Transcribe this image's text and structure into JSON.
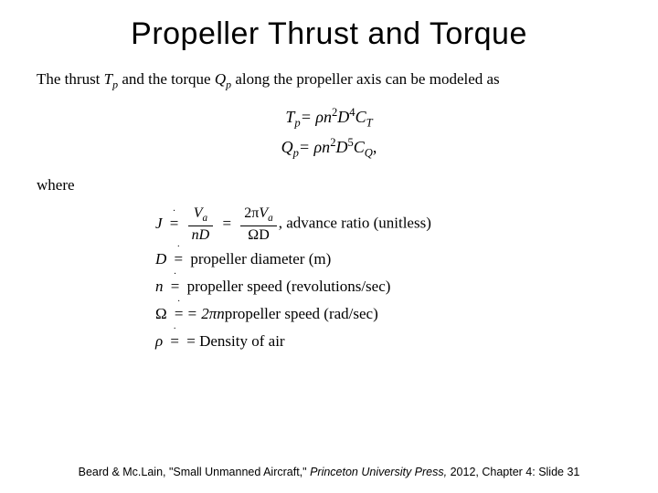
{
  "title": "Propeller Thrust and Torque",
  "intro_pre": "The thrust ",
  "intro_Tp": "T",
  "intro_Tp_sub": "p",
  "intro_mid1": " and the torque ",
  "intro_Qp": "Q",
  "intro_Qp_sub": "p",
  "intro_post": " along the propeller axis can be modeled as",
  "eq1_lhs": "T",
  "eq1_lhs_sub": "p",
  "eq1_rhs_a": " = ρn",
  "eq1_rhs_exp1": "2",
  "eq1_rhs_b": "D",
  "eq1_rhs_exp2": "4",
  "eq1_rhs_c": "C",
  "eq1_rhs_c_sub": "T",
  "eq2_lhs": "Q",
  "eq2_lhs_sub": "p",
  "eq2_rhs_a": " = ρn",
  "eq2_rhs_exp1": "2",
  "eq2_rhs_b": "D",
  "eq2_rhs_exp2": "5",
  "eq2_rhs_c": "C",
  "eq2_rhs_c_sub": "Q",
  "eq2_tail": ",",
  "where": "where",
  "def_J_sym": "J",
  "def_eq": "=",
  "def_J_num1": "V",
  "def_J_num1_sub": "a",
  "def_J_den1": "nD",
  "def_J_num2_a": "2π",
  "def_J_num2_b": "V",
  "def_J_num2_sub": "a",
  "def_J_den2": "ΩD",
  "def_J_desc": ",  advance ratio (unitless)",
  "def_D_sym": "D",
  "def_D_desc": "propeller diameter (m)",
  "def_n_sym": "n",
  "def_n_desc": "propeller speed (revolutions/sec)",
  "def_O_sym": "Ω",
  "def_O_rhs": " = 2πn ",
  "def_O_desc": "propeller speed (rad/sec)",
  "def_rho_sym": "ρ",
  "def_rho_desc": " = Density of air",
  "footer_a": "Beard & Mc.Lain, \"Small Unmanned Aircraft,\" ",
  "footer_b": "Princeton University Press,",
  "footer_c": " 2012,   Chapter 4:  Slide 31"
}
